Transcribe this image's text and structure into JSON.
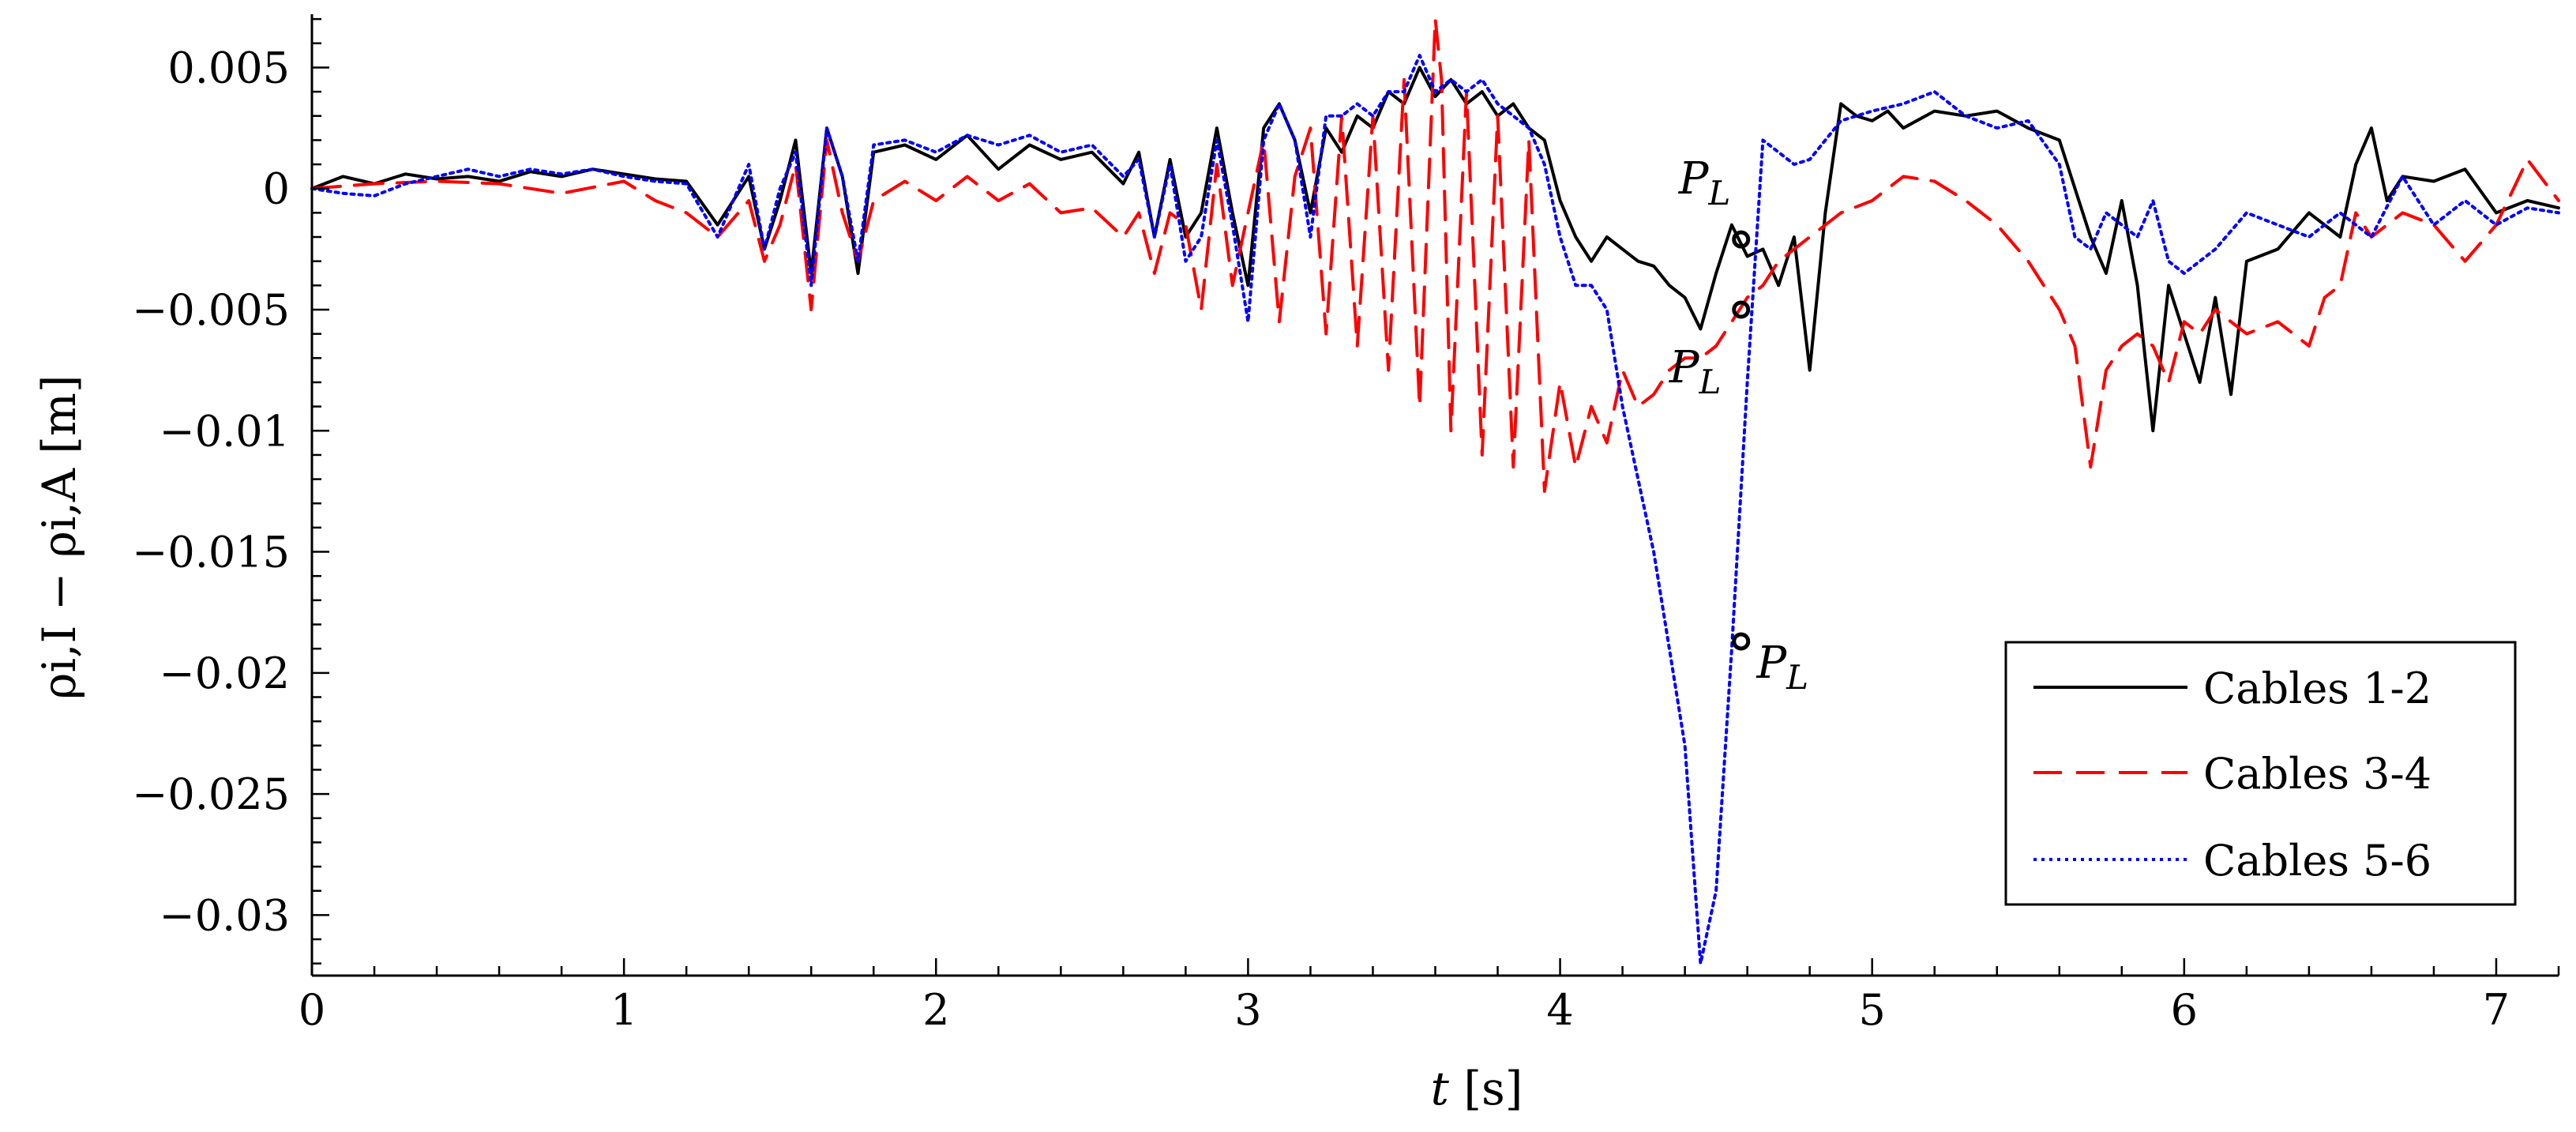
{
  "chart_data": {
    "type": "line",
    "xlabel_main": "t",
    "xlabel_unit": " [s]",
    "ylabel": "ρi,I − ρi,A [m]",
    "xlim": [
      0,
      7.2
    ],
    "ylim": [
      -0.0325,
      0.0072
    ],
    "x_ticks": [
      0,
      1,
      2,
      3,
      4,
      5,
      6,
      7
    ],
    "x_tick_labels": [
      "0",
      "1",
      "2",
      "3",
      "4",
      "5",
      "6",
      "7"
    ],
    "y_ticks": [
      0.005,
      0,
      -0.005,
      -0.01,
      -0.015,
      -0.02,
      -0.025,
      -0.03
    ],
    "y_tick_labels": [
      "0.005",
      "0",
      "−0.005",
      "−0.01",
      "−0.015",
      "−0.02",
      "−0.025",
      "−0.03"
    ],
    "grid": false,
    "legend_position": "bottom-right",
    "series": [
      {
        "name": "Cables 1-2",
        "color": "#000000",
        "dash": "solid",
        "x": [
          0,
          0.1,
          0.2,
          0.3,
          0.4,
          0.5,
          0.6,
          0.7,
          0.8,
          0.9,
          1.0,
          1.1,
          1.2,
          1.3,
          1.4,
          1.45,
          1.5,
          1.55,
          1.6,
          1.65,
          1.7,
          1.75,
          1.8,
          1.9,
          2.0,
          2.1,
          2.2,
          2.3,
          2.4,
          2.5,
          2.6,
          2.65,
          2.7,
          2.75,
          2.8,
          2.85,
          2.9,
          2.95,
          3.0,
          3.05,
          3.1,
          3.15,
          3.2,
          3.25,
          3.3,
          3.35,
          3.4,
          3.45,
          3.5,
          3.55,
          3.6,
          3.65,
          3.7,
          3.75,
          3.8,
          3.85,
          3.9,
          3.95,
          4.0,
          4.05,
          4.1,
          4.15,
          4.2,
          4.25,
          4.3,
          4.35,
          4.4,
          4.45,
          4.5,
          4.55,
          4.6,
          4.65,
          4.7,
          4.75,
          4.8,
          4.85,
          4.9,
          4.95,
          5.0,
          5.05,
          5.1,
          5.2,
          5.3,
          5.4,
          5.5,
          5.6,
          5.7,
          5.75,
          5.8,
          5.85,
          5.9,
          5.95,
          6.0,
          6.05,
          6.1,
          6.15,
          6.2,
          6.3,
          6.4,
          6.5,
          6.55,
          6.6,
          6.65,
          6.7,
          6.8,
          6.9,
          7.0,
          7.1,
          7.2
        ],
        "y": [
          0,
          0.0005,
          0.0002,
          0.0006,
          0.0004,
          0.0005,
          0.0003,
          0.0007,
          0.0005,
          0.0008,
          0.0006,
          0.0004,
          0.0003,
          -0.0015,
          0.0005,
          -0.0025,
          -0.0005,
          0.002,
          -0.0035,
          0.0025,
          0.0005,
          -0.0035,
          0.0015,
          0.0018,
          0.0012,
          0.0022,
          0.0008,
          0.0018,
          0.0012,
          0.0015,
          0.0002,
          0.0015,
          -0.002,
          0.0012,
          -0.002,
          -0.001,
          0.0025,
          -0.001,
          -0.004,
          0.0025,
          0.0035,
          0.002,
          -0.001,
          0.0025,
          0.0015,
          0.003,
          0.0025,
          0.004,
          0.0035,
          0.005,
          0.0038,
          0.0045,
          0.0035,
          0.004,
          0.003,
          0.0035,
          0.0025,
          0.002,
          -0.0005,
          -0.002,
          -0.003,
          -0.002,
          -0.0025,
          -0.003,
          -0.0032,
          -0.004,
          -0.0045,
          -0.0058,
          -0.0035,
          -0.0015,
          -0.0028,
          -0.0025,
          -0.004,
          -0.002,
          -0.0075,
          -0.001,
          0.0035,
          0.003,
          0.0028,
          0.0032,
          0.0025,
          0.0032,
          0.003,
          0.0032,
          0.0025,
          0.002,
          -0.002,
          -0.0035,
          -0.0005,
          -0.004,
          -0.01,
          -0.004,
          -0.006,
          -0.008,
          -0.0045,
          -0.0085,
          -0.003,
          -0.0025,
          -0.001,
          -0.002,
          0.001,
          0.0025,
          -0.0005,
          0.0005,
          0.0003,
          0.0008,
          -0.001,
          -0.0005,
          -0.0008
        ]
      },
      {
        "name": "Cables 3-4",
        "color": "#ff0000",
        "dash": "dashed",
        "x": [
          0,
          0.2,
          0.4,
          0.6,
          0.8,
          1.0,
          1.1,
          1.2,
          1.3,
          1.4,
          1.45,
          1.5,
          1.55,
          1.6,
          1.65,
          1.7,
          1.75,
          1.8,
          1.9,
          2.0,
          2.1,
          2.2,
          2.3,
          2.4,
          2.5,
          2.6,
          2.65,
          2.7,
          2.75,
          2.8,
          2.85,
          2.9,
          2.95,
          3.0,
          3.05,
          3.1,
          3.15,
          3.2,
          3.25,
          3.3,
          3.35,
          3.4,
          3.45,
          3.5,
          3.55,
          3.6,
          3.62,
          3.65,
          3.7,
          3.75,
          3.8,
          3.85,
          3.9,
          3.95,
          4.0,
          4.05,
          4.1,
          4.15,
          4.2,
          4.25,
          4.3,
          4.35,
          4.4,
          4.45,
          4.5,
          4.55,
          4.6,
          4.65,
          4.7,
          4.75,
          4.8,
          4.9,
          5.0,
          5.1,
          5.2,
          5.3,
          5.4,
          5.5,
          5.6,
          5.65,
          5.7,
          5.75,
          5.8,
          5.85,
          5.9,
          5.95,
          6.0,
          6.05,
          6.1,
          6.2,
          6.3,
          6.4,
          6.45,
          6.5,
          6.55,
          6.6,
          6.7,
          6.8,
          6.9,
          7.0,
          7.1,
          7.2
        ],
        "y": [
          0,
          0.0002,
          0.0003,
          0.0002,
          -0.0002,
          0.0003,
          -0.0005,
          -0.001,
          -0.002,
          -0.0005,
          -0.003,
          -0.0015,
          0.001,
          -0.005,
          0.002,
          -0.001,
          -0.003,
          -0.0005,
          0.0003,
          -0.0005,
          0.0005,
          -0.0005,
          0.0002,
          -0.001,
          -0.0008,
          -0.002,
          -0.001,
          -0.0035,
          -0.001,
          -0.0015,
          -0.005,
          0.001,
          -0.004,
          -0.001,
          0.002,
          -0.0055,
          0.0005,
          0.0025,
          -0.006,
          0.003,
          -0.0065,
          0.003,
          -0.0075,
          0.0045,
          -0.009,
          0.007,
          0.0045,
          -0.01,
          0.004,
          -0.011,
          0.003,
          -0.0115,
          0.002,
          -0.0125,
          -0.008,
          -0.0115,
          -0.009,
          -0.0105,
          -0.0075,
          -0.009,
          -0.0085,
          -0.0075,
          -0.007,
          -0.007,
          -0.0065,
          -0.0055,
          -0.0045,
          -0.004,
          -0.003,
          -0.0025,
          -0.002,
          -0.001,
          -0.0005,
          0.0005,
          0.0003,
          -0.0005,
          -0.0015,
          -0.003,
          -0.005,
          -0.0065,
          -0.0115,
          -0.0075,
          -0.0065,
          -0.006,
          -0.0065,
          -0.008,
          -0.0055,
          -0.006,
          -0.005,
          -0.006,
          -0.0055,
          -0.0065,
          -0.0045,
          -0.004,
          -0.001,
          -0.002,
          -0.001,
          -0.0015,
          -0.003,
          -0.0015,
          0.0012,
          -0.0005
        ]
      },
      {
        "name": "Cables 5-6",
        "color": "#0000ff",
        "dash": "dotted",
        "x": [
          0,
          0.1,
          0.2,
          0.3,
          0.4,
          0.5,
          0.6,
          0.7,
          0.8,
          0.9,
          1.0,
          1.1,
          1.2,
          1.3,
          1.4,
          1.45,
          1.5,
          1.55,
          1.6,
          1.65,
          1.7,
          1.75,
          1.8,
          1.9,
          2.0,
          2.1,
          2.2,
          2.3,
          2.4,
          2.5,
          2.6,
          2.65,
          2.7,
          2.75,
          2.8,
          2.85,
          2.9,
          2.95,
          3.0,
          3.05,
          3.1,
          3.15,
          3.2,
          3.25,
          3.3,
          3.35,
          3.4,
          3.45,
          3.5,
          3.55,
          3.6,
          3.65,
          3.7,
          3.75,
          3.8,
          3.85,
          3.9,
          3.95,
          4.0,
          4.05,
          4.1,
          4.15,
          4.2,
          4.25,
          4.3,
          4.35,
          4.4,
          4.45,
          4.5,
          4.55,
          4.6,
          4.65,
          4.7,
          4.75,
          4.8,
          4.9,
          5.0,
          5.1,
          5.2,
          5.3,
          5.4,
          5.5,
          5.6,
          5.65,
          5.7,
          5.75,
          5.8,
          5.85,
          5.9,
          5.95,
          6.0,
          6.1,
          6.2,
          6.3,
          6.4,
          6.5,
          6.6,
          6.7,
          6.8,
          6.9,
          7.0,
          7.1,
          7.2
        ],
        "y": [
          0,
          -0.0002,
          -0.0003,
          0.0002,
          0.0005,
          0.0008,
          0.0005,
          0.0008,
          0.0006,
          0.0008,
          0.0005,
          0.0003,
          0.0002,
          -0.002,
          0.001,
          -0.0025,
          0,
          0.0015,
          -0.004,
          0.0025,
          0.0005,
          -0.003,
          0.0018,
          0.002,
          0.0015,
          0.0022,
          0.0018,
          0.0022,
          0.0015,
          0.0018,
          0.0005,
          0.0012,
          -0.002,
          0.001,
          -0.003,
          -0.002,
          0.002,
          -0.0015,
          -0.0055,
          0.002,
          0.0035,
          0.002,
          -0.002,
          0.003,
          0.003,
          0.0035,
          0.003,
          0.004,
          0.004,
          0.0055,
          0.004,
          0.0045,
          0.004,
          0.0045,
          0.0035,
          0.003,
          0.0025,
          0.001,
          -0.002,
          -0.004,
          -0.004,
          -0.005,
          -0.009,
          -0.012,
          -0.015,
          -0.019,
          -0.023,
          -0.032,
          -0.029,
          -0.019,
          -0.008,
          0.002,
          0.0015,
          0.001,
          0.0012,
          0.0028,
          0.0032,
          0.0035,
          0.004,
          0.003,
          0.0025,
          0.0028,
          0.001,
          -0.002,
          -0.0025,
          -0.001,
          -0.0015,
          -0.002,
          -0.0005,
          -0.003,
          -0.0035,
          -0.0025,
          -0.001,
          -0.0015,
          -0.002,
          -0.001,
          -0.002,
          0.0005,
          -0.0015,
          -0.0005,
          -0.0015,
          -0.0008,
          -0.001
        ]
      }
    ],
    "annotations": [
      {
        "text": "P",
        "subscript": "L",
        "x": 4.58,
        "y": -0.0021,
        "label_x": 4.38,
        "label_y": -0.0002
      },
      {
        "text": "P",
        "subscript": "L",
        "x": 4.58,
        "y": -0.005,
        "label_x": 4.35,
        "label_y": -0.008
      },
      {
        "text": "P",
        "subscript": "L",
        "x": 4.58,
        "y": -0.0187,
        "label_x": 4.63,
        "label_y": -0.0202
      }
    ]
  }
}
